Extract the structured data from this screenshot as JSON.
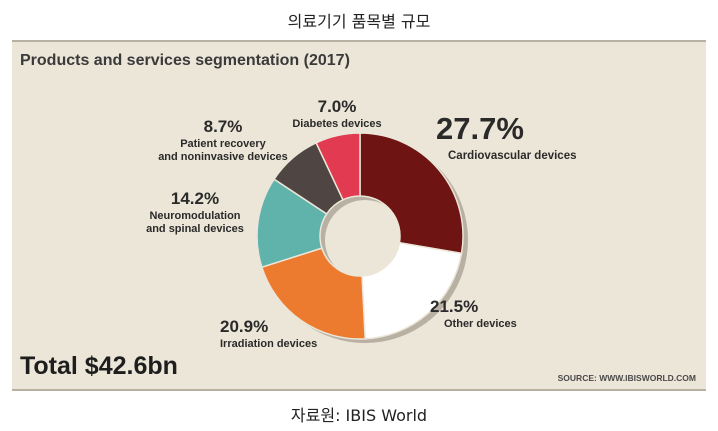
{
  "page_heading": "의료기기 품목별 규모",
  "caption": "자료원: IBIS World",
  "chart_data": {
    "type": "pie",
    "title": "Products and services segmentation (2017)",
    "total_label": "Total $42.6bn",
    "source": "SOURCE: WWW.IBISWORLD.COM",
    "slices": [
      {
        "label_lines": [
          "Cardiovascular devices"
        ],
        "value": 27.7,
        "value_label": "27.7%",
        "color": "#6e1412"
      },
      {
        "label_lines": [
          "Other devices"
        ],
        "value": 21.5,
        "value_label": "21.5%",
        "color": "#ffffff"
      },
      {
        "label_lines": [
          "Irradiation devices"
        ],
        "value": 20.9,
        "value_label": "20.9%",
        "color": "#ec7a2f"
      },
      {
        "label_lines": [
          "Neuromodulation",
          "and spinal devices"
        ],
        "value": 14.2,
        "value_label": "14.2%",
        "color": "#5fb3ab"
      },
      {
        "label_lines": [
          "Patient recovery",
          "and noninvasive devices"
        ],
        "value": 8.7,
        "value_label": "8.7%",
        "color": "#4f4542"
      },
      {
        "label_lines": [
          "Diabetes devices"
        ],
        "value": 7.0,
        "value_label": "7.0%",
        "color": "#e23a50"
      }
    ]
  }
}
